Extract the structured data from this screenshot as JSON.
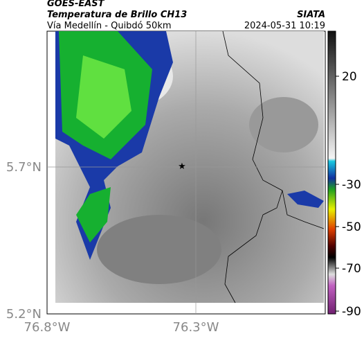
{
  "header": {
    "title": "GOES-EAST",
    "subtitle": "Temperatura de Brillo CH13",
    "source": "SIATA",
    "route": "Vía Medellín - Quibdó 50km",
    "timestamp": "2024-05-31 10:19"
  },
  "latitude_labels": [
    "5.7°N",
    "5.2°N"
  ],
  "longitude_labels": [
    "76.8°W",
    "76.3°W"
  ],
  "colorbar_ticks": [
    20,
    -30,
    -50,
    -70,
    -90
  ]
}
